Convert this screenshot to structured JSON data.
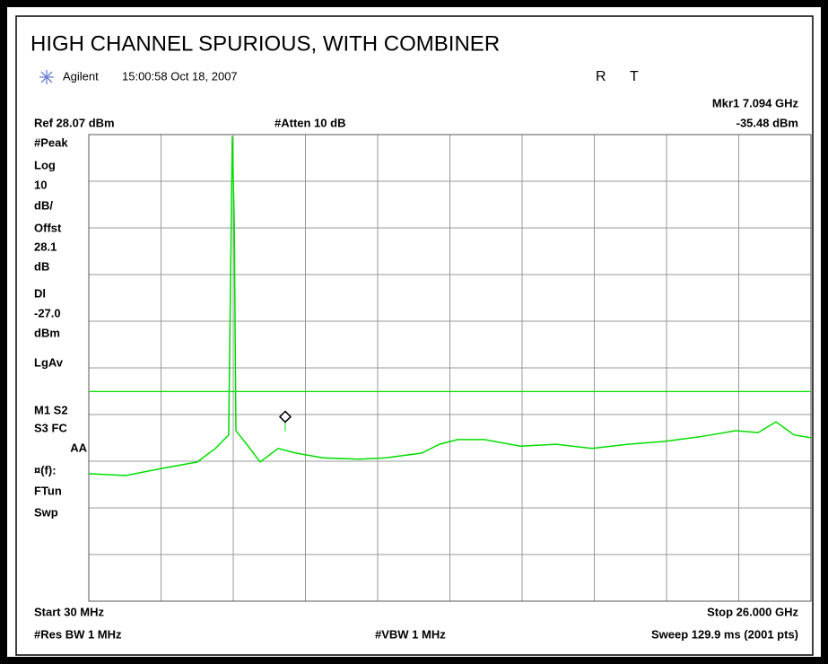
{
  "chart_data": {
    "type": "line",
    "title": "HIGH CHANNEL SPURIOUS, WITH COMBINER",
    "instrument": "Agilent",
    "timestamp": "15:00:58  Oct 18, 2007",
    "status": [
      "R",
      "T"
    ],
    "ref_label": "Ref 28.07 dBm",
    "atten_label": "#Atten 10 dB",
    "marker": {
      "label": "Mkr1  7.094 GHz",
      "x": 7.094,
      "y": -35.48,
      "y_label": "-35.48 dBm"
    },
    "display_line": {
      "value": -27,
      "label": "-27.0"
    },
    "side_labels": [
      "#Peak",
      "Log",
      "10",
      "dB/",
      "Offst",
      "28.1",
      "dB",
      "Dl",
      "dBm",
      "LgAv",
      "M1  S2",
      "S3  FC",
      "AA",
      "¤(f):",
      "FTun",
      "Swp"
    ],
    "start_label": "Start 30 MHz",
    "stop_label": "Stop 26.000 GHz",
    "rbw_label": "#Res BW 1 MHz",
    "vbw_label": "#VBW 1 MHz",
    "sweep_label": "Sweep 129.9 ms (2001 pts)",
    "xlim": [
      0.03,
      26
    ],
    "ylim": [
      -71.93,
      28.07
    ],
    "xticks": [
      0.03,
      2.627,
      5.224,
      7.821,
      10.418,
      13.015,
      15.612,
      18.209,
      20.806,
      23.403,
      26
    ],
    "yticks": [
      28.07,
      18.07,
      8.07,
      -1.93,
      -11.93,
      -21.93,
      -31.93,
      -41.93,
      -51.93,
      -61.93,
      -71.93
    ],
    "grid": true,
    "color": "#00dd00",
    "x": [
      0.03,
      1.35,
      2.64,
      3.93,
      4.58,
      5.06,
      5.19,
      5.26,
      5.32,
      5.71,
      6.19,
      6.84,
      7.48,
      8.45,
      9.74,
      10.71,
      12.0,
      12.64,
      13.29,
      14.26,
      15.55,
      16.84,
      18.13,
      19.42,
      20.71,
      22.0,
      23.29,
      24.1,
      24.74,
      25.39,
      26.0
    ],
    "values": [
      -44.6,
      -45.0,
      -43.5,
      -42.1,
      -39.2,
      -36.3,
      27.7,
      9.8,
      -35.4,
      -38.3,
      -42.1,
      -39.2,
      -40.2,
      -41.2,
      -41.5,
      -41.2,
      -40.2,
      -38.3,
      -37.3,
      -37.3,
      -38.7,
      -38.3,
      -39.2,
      -38.3,
      -37.7,
      -36.7,
      -35.4,
      -35.8,
      -33.5,
      -36.3,
      -36.9
    ]
  }
}
